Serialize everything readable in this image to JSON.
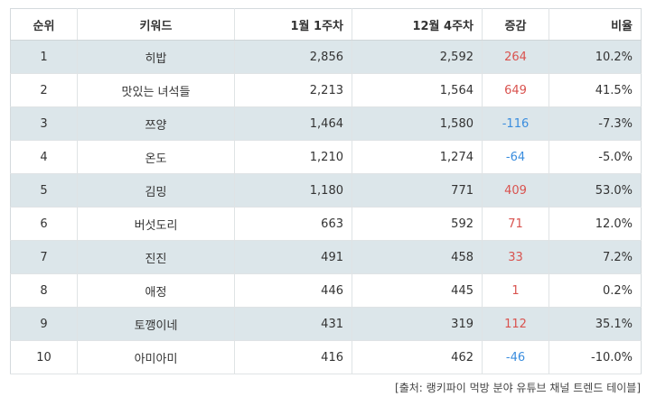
{
  "table": {
    "headers": {
      "rank": "순위",
      "keyword": "키워드",
      "week1": "1월 1주차",
      "week4": "12월 4주차",
      "change": "증감",
      "ratio": "비율"
    },
    "rows": [
      {
        "rank": "1",
        "keyword": "히밥",
        "week1": "2,856",
        "week4": "2,592",
        "change": "264",
        "ratio": "10.2%",
        "direction": "up"
      },
      {
        "rank": "2",
        "keyword": "맛있는 녀석들",
        "week1": "2,213",
        "week4": "1,564",
        "change": "649",
        "ratio": "41.5%",
        "direction": "up"
      },
      {
        "rank": "3",
        "keyword": "쯔양",
        "week1": "1,464",
        "week4": "1,580",
        "change": "-116",
        "ratio": "-7.3%",
        "direction": "down"
      },
      {
        "rank": "4",
        "keyword": "온도",
        "week1": "1,210",
        "week4": "1,274",
        "change": "-64",
        "ratio": "-5.0%",
        "direction": "down"
      },
      {
        "rank": "5",
        "keyword": "김밍",
        "week1": "1,180",
        "week4": "771",
        "change": "409",
        "ratio": "53.0%",
        "direction": "up"
      },
      {
        "rank": "6",
        "keyword": "버섯도리",
        "week1": "663",
        "week4": "592",
        "change": "71",
        "ratio": "12.0%",
        "direction": "up"
      },
      {
        "rank": "7",
        "keyword": "진진",
        "week1": "491",
        "week4": "458",
        "change": "33",
        "ratio": "7.2%",
        "direction": "up"
      },
      {
        "rank": "8",
        "keyword": "애정",
        "week1": "446",
        "week4": "445",
        "change": "1",
        "ratio": "0.2%",
        "direction": "up"
      },
      {
        "rank": "9",
        "keyword": "토깽이네",
        "week1": "431",
        "week4": "319",
        "change": "112",
        "ratio": "35.1%",
        "direction": "up"
      },
      {
        "rank": "10",
        "keyword": "아미아미",
        "week1": "416",
        "week4": "462",
        "change": "-46",
        "ratio": "-10.0%",
        "direction": "down"
      }
    ]
  },
  "source": "[출처: 랭키파이 먹방 분야 유튜브 채널 트렌드 테이블]",
  "colors": {
    "increase": "#d9534f",
    "decrease": "#3a8dde",
    "stripe": "#dce6ea"
  }
}
